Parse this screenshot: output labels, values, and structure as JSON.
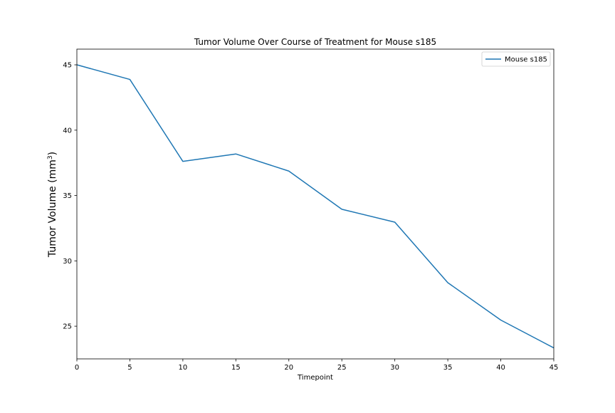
{
  "chart_data": {
    "type": "line",
    "title": "Tumor Volume Over Course of Treatment for Mouse s185",
    "xlabel": "Timepoint",
    "ylabel_main": "Tumor Volume (mm",
    "ylabel_sup": "3",
    "ylabel_close": ")",
    "xlim": [
      0,
      45
    ],
    "ylim": [
      22.5,
      46.2
    ],
    "xticks": [
      0,
      5,
      10,
      15,
      20,
      25,
      30,
      35,
      40,
      45
    ],
    "yticks": [
      25,
      30,
      35,
      40,
      45
    ],
    "grid": false,
    "legend_position": "top-right",
    "series": [
      {
        "name": "Mouse s185",
        "color": "#1f77b4",
        "x": [
          0,
          5,
          10,
          15,
          20,
          25,
          30,
          35,
          40,
          45
        ],
        "y": [
          45.0,
          43.88,
          37.61,
          38.18,
          36.87,
          33.95,
          32.96,
          28.33,
          25.47,
          23.34
        ]
      }
    ]
  }
}
